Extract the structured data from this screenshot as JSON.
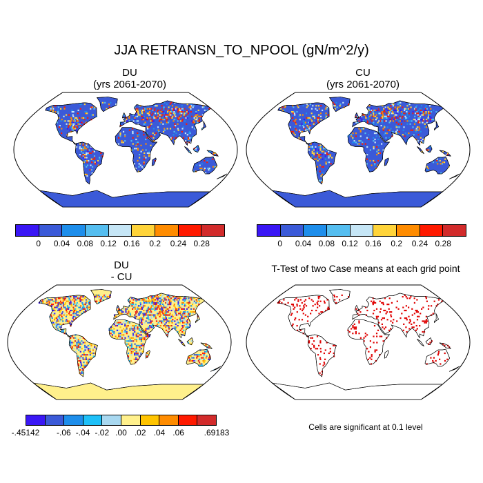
{
  "main_title": "JJA RETRANSN_TO_NPOOL (gN/m^2/y)",
  "panels": {
    "du": {
      "title": "DU",
      "subtitle": "(yrs 2061-2070)"
    },
    "cu": {
      "title": "CU",
      "subtitle": "(yrs 2061-2070)"
    },
    "diff": {
      "title": "DU",
      "subtitle": "- CU"
    },
    "ttest": {
      "title": "T-Test of two Case means at each grid point",
      "note": "Cells are significant at 0.1 level"
    }
  },
  "legend_top": {
    "colors": [
      "#3a17f5",
      "#3b5ad8",
      "#1e8eeb",
      "#55bef0",
      "#c6e6f6",
      "#ffd43a",
      "#ff8c00",
      "#ff1a00",
      "#d22b2b"
    ],
    "labels": [
      "0",
      "0.04",
      "0.08",
      "0.12",
      "0.16",
      "0.2",
      "0.24",
      "0.28"
    ]
  },
  "legend_diff": {
    "colors": [
      "#3a17f5",
      "#3b5ad8",
      "#1e8eeb",
      "#1ec0f8",
      "#a8d8f0",
      "#fff08c",
      "#ffc400",
      "#ff8c00",
      "#ff1a00",
      "#d22b2b"
    ],
    "labels": [
      "-.45142",
      "-.06",
      "-.04",
      "-.02",
      ".00",
      ".02",
      ".04",
      ".06",
      ".69183"
    ]
  },
  "colors": {
    "land_base": "#3b5ad8",
    "diff_base": "#fff08c",
    "ocean": "#ffffff",
    "significant": "#e00000"
  }
}
